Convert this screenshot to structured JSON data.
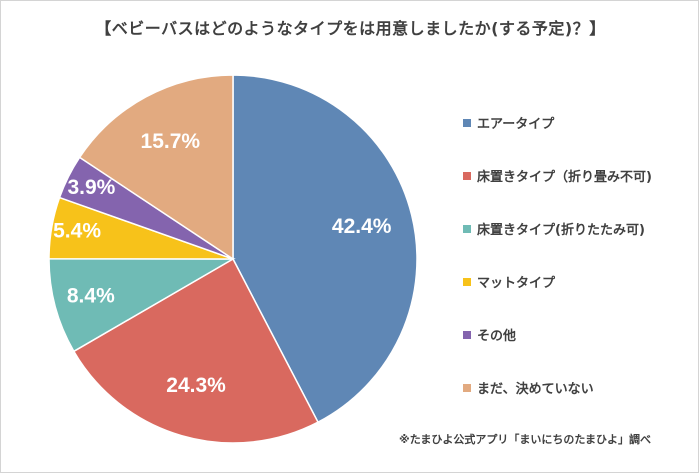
{
  "chart_data": {
    "type": "pie",
    "title": "【ベビーバスはどのようなタイプをは用意しましたか(する予定)？】",
    "categories": [
      "エアータイプ",
      "床置きタイプ（折り畳み不可)",
      "床置きタイプ(折りたたみ可)",
      "マットタイプ",
      "その他",
      "まだ、決めていない"
    ],
    "values": [
      42.4,
      24.3,
      8.4,
      5.4,
      3.9,
      15.7
    ],
    "data_labels": [
      "42.4%",
      "24.3%",
      "8.4%",
      "5.4%",
      "3.9%",
      "15.7%"
    ],
    "colors": [
      "#5f87b5",
      "#d9695f",
      "#6fbbb5",
      "#f7c21a",
      "#8464ae",
      "#e2aa80"
    ],
    "legend_position": "right",
    "source_note": "※たまひよ公式アプリ「まいにちのたまひよ」調べ"
  }
}
